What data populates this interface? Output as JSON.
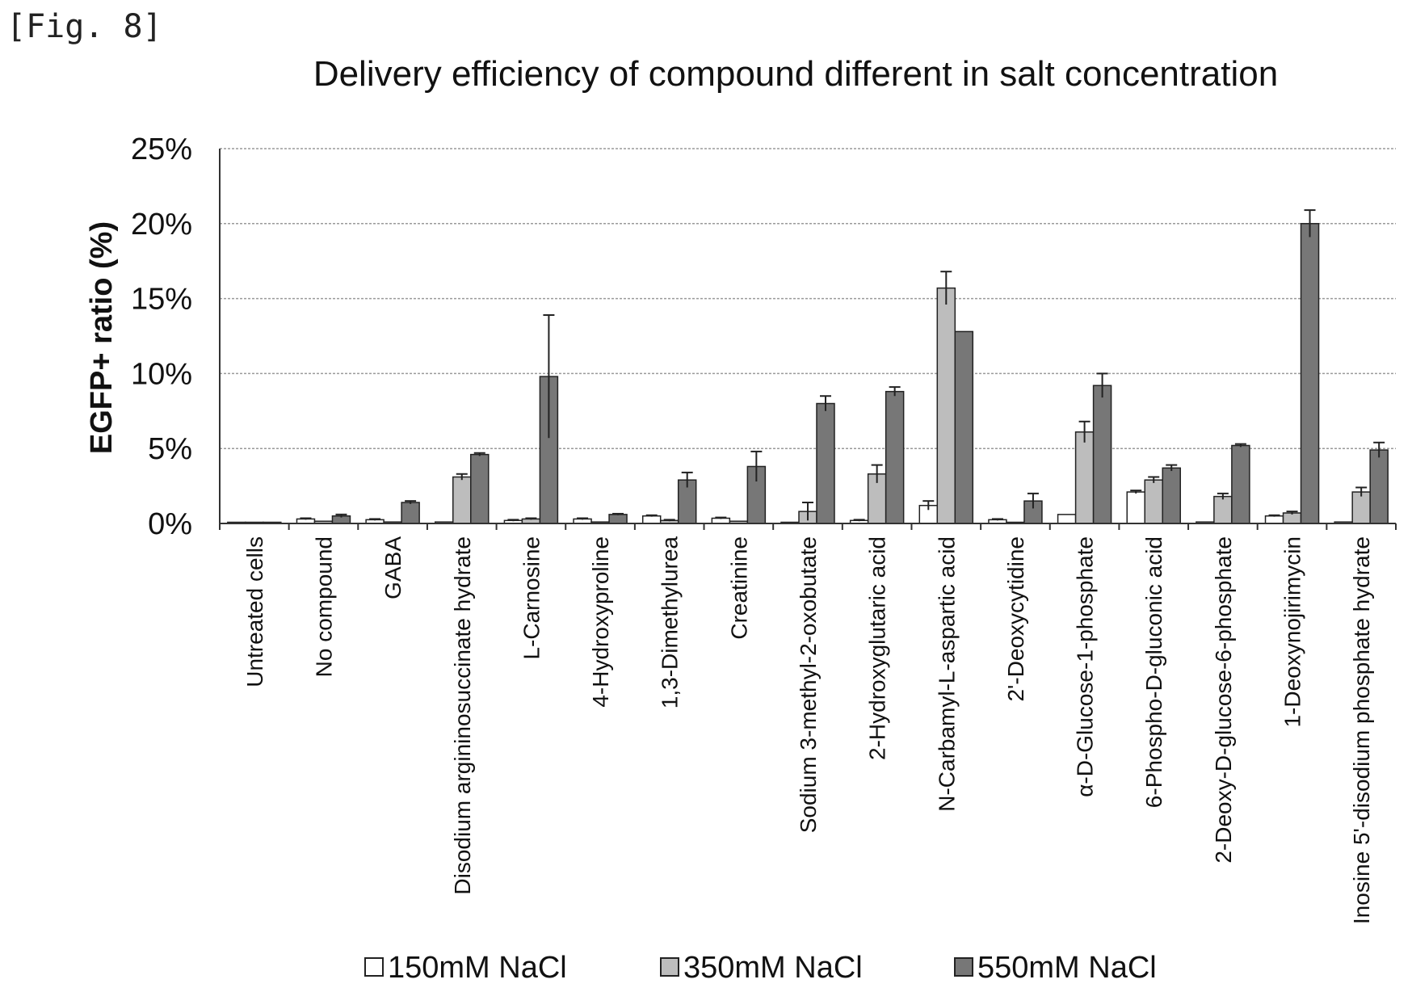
{
  "figure_label": "[Fig. 8]",
  "colors": {
    "s150": "#ffffff",
    "s350": "#bdbdbd",
    "s550": "#777777",
    "border": "#222222"
  },
  "chart_data": {
    "type": "bar",
    "title": "Delivery efficiency of compound different in salt concentration",
    "xlabel": "",
    "ylabel": "EGFP+ ratio (%)",
    "ylim": [
      0,
      25
    ],
    "yticks": [
      "0%",
      "5%",
      "10%",
      "15%",
      "20%",
      "25%"
    ],
    "grid": true,
    "legend_position": "bottom",
    "categories": [
      "Untreated cells",
      "No compound",
      "GABA",
      "Disodium argininosuccinate hydrate",
      "L-Carnosine",
      "4-Hydroxyproline",
      "1,3-Dimethylurea",
      "Creatinine",
      "Sodium 3-methyl-2-oxobutate",
      "2-Hydroxyglutaric acid",
      "N-Carbamyl-L-aspartic acid",
      "2'-Deoxycytidine",
      "α-D-Glucose-1-phosphate",
      "6-Phospho-D-gluconic acid",
      "2-Deoxy-D-glucose-6-phosphate",
      "1-Deoxynojirimycin",
      "Inosine 5'-disodium phosphate hydrate"
    ],
    "series": [
      {
        "name": "150mM NaCl",
        "values": [
          0.05,
          0.3,
          0.25,
          0.1,
          0.2,
          0.3,
          0.5,
          0.35,
          0.05,
          0.2,
          1.2,
          0.25,
          0.6,
          2.1,
          0.1,
          0.5,
          0.1
        ],
        "errors": [
          0,
          0.05,
          0.05,
          0,
          0.05,
          0.05,
          0.05,
          0.05,
          0,
          0.05,
          0.3,
          0.05,
          0,
          0.1,
          0,
          0.05,
          0
        ]
      },
      {
        "name": "350mM NaCl",
        "values": [
          0.05,
          0.15,
          0.1,
          3.1,
          0.3,
          0.1,
          0.2,
          0.15,
          0.8,
          3.3,
          15.7,
          0.05,
          6.1,
          2.9,
          1.8,
          0.7,
          2.1
        ],
        "errors": [
          0,
          0,
          0,
          0.2,
          0.05,
          0,
          0.05,
          0,
          0.6,
          0.6,
          1.1,
          0,
          0.7,
          0.2,
          0.2,
          0.1,
          0.3
        ]
      },
      {
        "name": "550mM NaCl",
        "values": [
          0.05,
          0.5,
          1.4,
          4.6,
          9.8,
          0.6,
          2.9,
          3.8,
          8.0,
          8.8,
          12.8,
          1.5,
          9.2,
          3.7,
          5.2,
          20.0,
          4.9
        ],
        "errors": [
          0,
          0.1,
          0.1,
          0.1,
          4.1,
          0.05,
          0.5,
          1.0,
          0.5,
          0.3,
          0,
          0.5,
          0.8,
          0.2,
          0.1,
          0.9,
          0.5
        ]
      }
    ]
  }
}
